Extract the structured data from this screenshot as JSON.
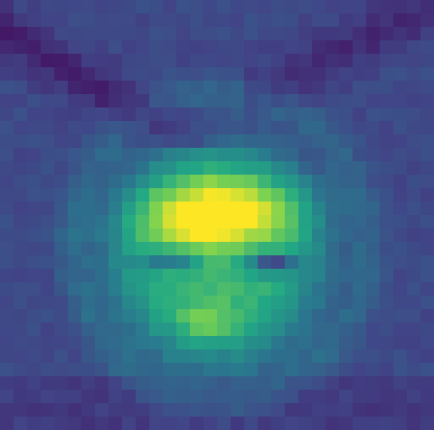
{
  "colormap": "viridis",
  "palette": {
    "low": "#440154",
    "mid_low": "#3b528b",
    "mid": "#21918c",
    "mid_high": "#5ec962",
    "high": "#fde725"
  },
  "image": {
    "grid_cols": 32,
    "grid_rows": 32,
    "description_visible": false
  }
}
